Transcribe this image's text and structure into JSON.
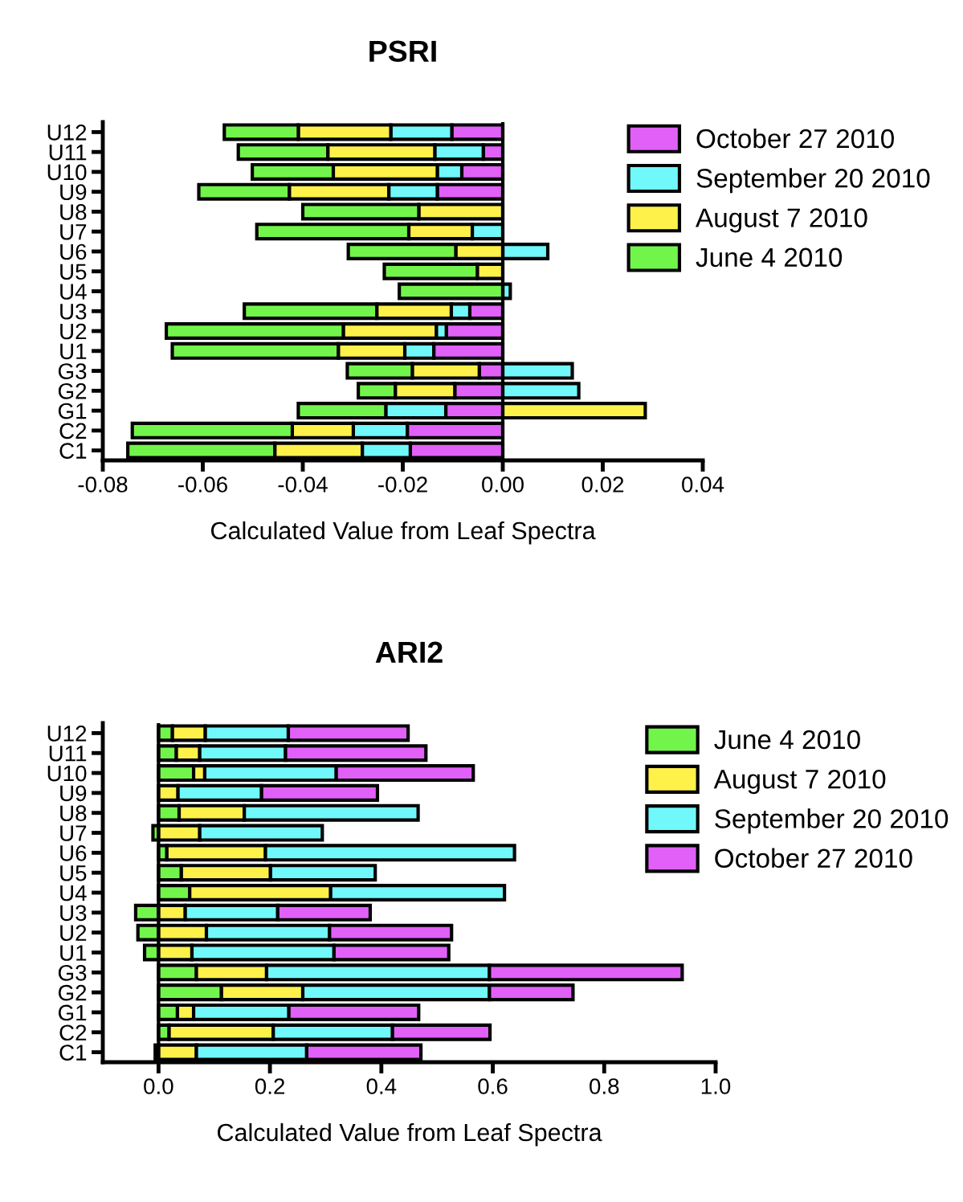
{
  "chart_data": [
    {
      "type": "bar",
      "orientation": "horizontal",
      "stacked": true,
      "title": "PSRI",
      "xlabel": "Calculated Value from Leaf Spectra",
      "categories": [
        "U12",
        "U11",
        "U10",
        "U9",
        "U8",
        "U7",
        "U6",
        "U5",
        "U4",
        "U3",
        "U2",
        "U1",
        "G3",
        "G2",
        "G1",
        "C2",
        "C1"
      ],
      "series": [
        {
          "name": "October 27 2010",
          "color": "#e060f8",
          "values": [
            -0.0102,
            -0.0039,
            -0.0082,
            -0.0131,
            null,
            null,
            null,
            null,
            null,
            -0.0066,
            -0.0113,
            -0.0138,
            -0.0047,
            -0.0096,
            -0.0114,
            -0.0191,
            -0.0185
          ]
        },
        {
          "name": "September 20 2010",
          "color": "#70f8fb",
          "values": [
            -0.0122,
            -0.0097,
            -0.0049,
            -0.0097,
            null,
            -0.0061,
            0.009,
            null,
            0.0015,
            -0.0037,
            -0.002,
            -0.0058,
            0.0139,
            0.0152,
            -0.012,
            -0.0108,
            -0.0096
          ]
        },
        {
          "name": "August 7 2010",
          "color": "#fef14a",
          "values": [
            -0.0185,
            -0.0214,
            -0.0208,
            -0.0199,
            -0.0168,
            -0.0127,
            -0.0094,
            -0.0051,
            null,
            -0.0149,
            -0.0186,
            -0.0133,
            -0.0134,
            -0.0119,
            0.0285,
            -0.0122,
            -0.0175
          ]
        },
        {
          "name": "June 4 2010",
          "color": "#72f54a",
          "values": [
            -0.0148,
            -0.0179,
            -0.0162,
            -0.0181,
            -0.0232,
            -0.0304,
            -0.0215,
            -0.0186,
            -0.0207,
            -0.0265,
            -0.0354,
            -0.0332,
            -0.013,
            -0.0074,
            -0.0175,
            -0.032,
            -0.0294
          ]
        }
      ],
      "xlim": [
        -0.08,
        0.04
      ],
      "xticks": [
        {
          "value": -0.08,
          "label": "-0.08"
        },
        {
          "value": -0.06,
          "label": "-0.06"
        },
        {
          "value": -0.04,
          "label": "-0.04"
        },
        {
          "value": -0.02,
          "label": "-0.02"
        },
        {
          "value": 0,
          "label": "0.00"
        },
        {
          "value": 0.02,
          "label": "0.02"
        },
        {
          "value": 0.04,
          "label": "0.04"
        }
      ],
      "legend": "top right"
    },
    {
      "type": "bar",
      "orientation": "horizontal",
      "stacked": true,
      "title": "ARI2",
      "xlabel": "Calculated Value from Leaf Spectra",
      "categories": [
        "U12",
        "U11",
        "U10",
        "U9",
        "U8",
        "U7",
        "U6",
        "U5",
        "U4",
        "U3",
        "U2",
        "U1",
        "G3",
        "G2",
        "G1",
        "C2",
        "C1"
      ],
      "series": [
        {
          "name": "June 4 2010",
          "color": "#72f54a",
          "values": [
            0.025,
            0.032,
            0.063,
            null,
            0.037,
            -0.01,
            0.015,
            0.041,
            0.056,
            -0.041,
            -0.037,
            -0.025,
            0.068,
            0.113,
            0.034,
            0.019,
            -0.006
          ]
        },
        {
          "name": "August 7 2010",
          "color": "#fef14a",
          "values": [
            0.059,
            0.042,
            0.02,
            0.035,
            0.117,
            0.074,
            0.177,
            0.16,
            0.253,
            0.048,
            0.086,
            0.06,
            0.126,
            0.146,
            0.029,
            0.187,
            0.068
          ]
        },
        {
          "name": "September 20 2010",
          "color": "#70f8fb",
          "values": [
            0.149,
            0.154,
            0.236,
            0.15,
            0.312,
            0.22,
            0.447,
            0.188,
            0.312,
            0.166,
            0.221,
            0.255,
            0.4,
            0.335,
            0.171,
            0.214,
            0.198
          ]
        },
        {
          "name": "October 27 2010",
          "color": "#e060f8",
          "values": [
            0.215,
            0.252,
            0.246,
            0.208,
            null,
            null,
            null,
            null,
            null,
            0.166,
            0.219,
            0.206,
            0.346,
            0.15,
            0.233,
            0.175,
            0.205
          ]
        }
      ],
      "xlim": [
        -0.1,
        1.0
      ],
      "xticks": [
        {
          "value": 0,
          "label": "0.0"
        },
        0.2,
        0.4,
        0.6,
        0.8,
        {
          "value": 1.0,
          "label": "1.0"
        }
      ],
      "legend": "top right"
    }
  ]
}
